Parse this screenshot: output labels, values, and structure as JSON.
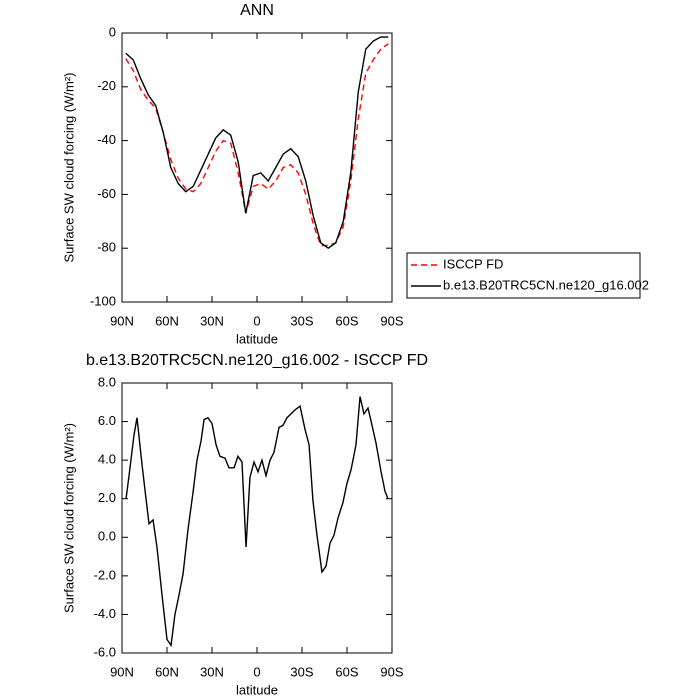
{
  "chart_data": [
    {
      "type": "line",
      "title": "ANN",
      "xlabel": "latitude",
      "ylabel": "Surface SW cloud forcing (W/m²)",
      "xlim": [
        90,
        -90
      ],
      "xticks": [
        {
          "value": 90,
          "label": "90N"
        },
        {
          "value": 60,
          "label": "60N"
        },
        {
          "value": 30,
          "label": "30N"
        },
        0,
        {
          "value": -30,
          "label": "30S"
        },
        {
          "value": -60,
          "label": "60S"
        },
        {
          "value": -90,
          "label": "90S"
        }
      ],
      "ylim": [
        -100,
        0
      ],
      "yticks": [
        -100,
        -80,
        -60,
        -40,
        -20,
        0
      ],
      "legend": "outside-right",
      "x": [
        87.5,
        82.5,
        77.5,
        72.5,
        67.5,
        62.5,
        57.5,
        52.5,
        47.5,
        42.5,
        37.5,
        32.5,
        27.5,
        22.5,
        17.5,
        12.5,
        7.5,
        2.5,
        -2.5,
        -7.5,
        -12.5,
        -17.5,
        -22.5,
        -27.5,
        -32.5,
        -37.5,
        -42.5,
        -47.5,
        -52.5,
        -57.5,
        -62.5,
        -67.5,
        -72.5,
        -77.5,
        -82.5,
        -87.5
      ],
      "series": [
        {
          "name": "ISCCP FD",
          "color": "#ff0000",
          "style": "dashed",
          "values": [
            -9.5,
            -14,
            -21,
            -25,
            -28,
            -37,
            -47,
            -54,
            -58,
            -59,
            -56,
            -50,
            -44,
            -40,
            -41,
            -52,
            -67,
            -57,
            -56,
            -58,
            -55,
            -50,
            -49,
            -52,
            -60,
            -71,
            -79,
            -79,
            -78,
            -72,
            -55,
            -32,
            -15,
            -10,
            -6,
            -4
          ]
        },
        {
          "name": "b.e13.B20TRC5CN.ne120_g16.002",
          "color": "#000000",
          "style": "solid",
          "values": [
            -7.5,
            -10,
            -17,
            -23,
            -27,
            -37,
            -50,
            -56,
            -59,
            -57,
            -51,
            -45,
            -39,
            -36,
            -38,
            -48,
            -67,
            -53,
            -52,
            -55,
            -50,
            -45,
            -43,
            -46,
            -55,
            -68,
            -78,
            -80,
            -78,
            -70,
            -52,
            -22,
            -6,
            -3,
            -1.5,
            -1.5
          ]
        }
      ]
    },
    {
      "type": "line",
      "title": "b.e13.B20TRC5CN.ne120_g16.002 - ISCCP FD",
      "xlabel": "latitude",
      "ylabel": "Surface SW cloud forcing (W/m²)",
      "xlim": [
        90,
        -90
      ],
      "xticks": [
        {
          "value": 90,
          "label": "90N"
        },
        {
          "value": 60,
          "label": "60N"
        },
        {
          "value": 30,
          "label": "30N"
        },
        0,
        {
          "value": -30,
          "label": "30S"
        },
        {
          "value": -60,
          "label": "60S"
        },
        {
          "value": -90,
          "label": "90S"
        }
      ],
      "ylim": [
        -6,
        8
      ],
      "yticks": [
        {
          "value": -6,
          "label": "-6.0"
        },
        {
          "value": -4,
          "label": "-4.0"
        },
        {
          "value": -2,
          "label": "-2.0"
        },
        {
          "value": 0,
          "label": "0.0"
        },
        {
          "value": 2,
          "label": "2.0"
        },
        {
          "value": 4,
          "label": "4.0"
        },
        {
          "value": 6,
          "label": "6.0"
        },
        {
          "value": 8,
          "label": "8.0"
        }
      ],
      "x": [
        87.3,
        85.3,
        82,
        80,
        76.7,
        74,
        72,
        69.3,
        66.7,
        63.3,
        60,
        57.3,
        54.7,
        52,
        49.3,
        46,
        42.7,
        40,
        37.3,
        35.3,
        32.7,
        30,
        27.3,
        24.7,
        21.3,
        18.7,
        15.3,
        12.7,
        10,
        7.3,
        4.7,
        2,
        -0.7,
        -3.3,
        -6,
        -8.7,
        -11.3,
        -14.7,
        -17.3,
        -20,
        -22.7,
        -25.3,
        -28.7,
        -32,
        -34.7,
        -37.3,
        -40,
        -43.3,
        -46,
        -48.7,
        -51.3,
        -54,
        -57.3,
        -60,
        -62.7,
        -66,
        -68.7,
        -71.3,
        -74,
        -76.7,
        -79.3,
        -82.7,
        -85.3,
        -87.3
      ],
      "series": [
        {
          "color": "#000000",
          "style": "solid",
          "values": [
            2.0,
            3.2,
            5.3,
            6.2,
            3.8,
            2.0,
            0.7,
            0.9,
            -0.5,
            -3.0,
            -5.3,
            -5.6,
            -4.0,
            -3.0,
            -1.9,
            0.4,
            2.3,
            4.0,
            5.0,
            6.1,
            6.2,
            5.9,
            4.8,
            4.2,
            4.1,
            3.6,
            3.6,
            4.2,
            3.9,
            -0.5,
            3.1,
            3.9,
            3.4,
            4.0,
            3.2,
            4.0,
            4.4,
            5.7,
            5.8,
            6.2,
            6.4,
            6.6,
            6.8,
            5.6,
            4.8,
            1.9,
            0.1,
            -1.8,
            -1.5,
            -0.3,
            0.1,
            1.0,
            1.8,
            2.8,
            3.5,
            4.8,
            7.3,
            6.4,
            6.7,
            5.8,
            4.9,
            3.4,
            2.4,
            2.0
          ]
        }
      ]
    }
  ]
}
